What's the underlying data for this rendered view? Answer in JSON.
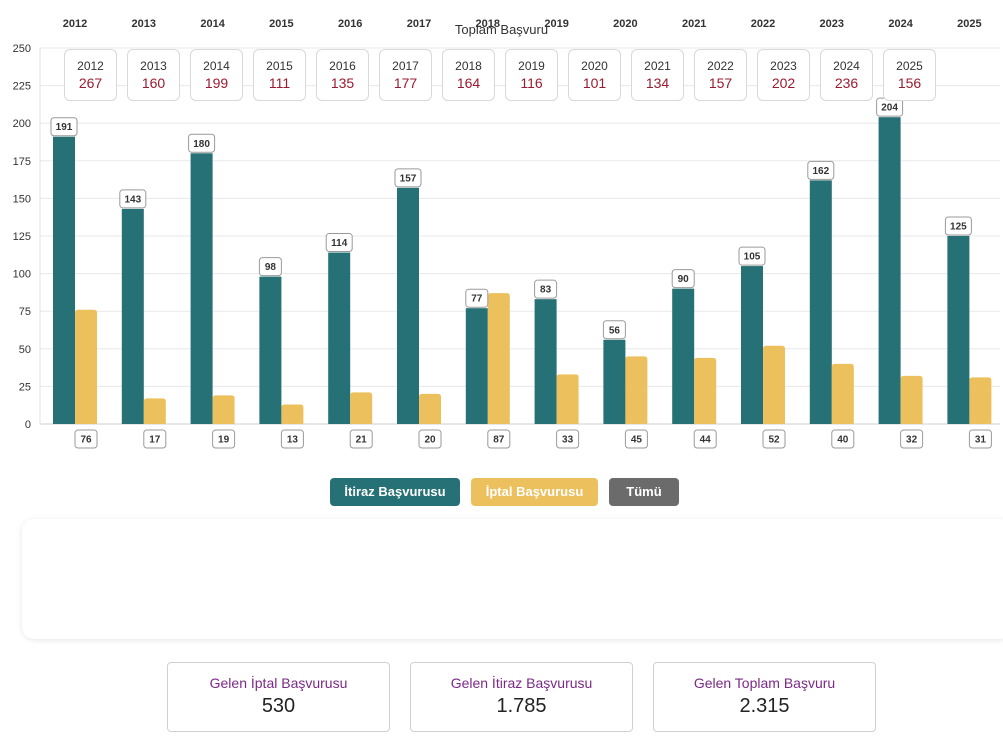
{
  "colors": {
    "itiraz": "#267175",
    "iptal": "#edc05e",
    "tumu": "#6b6b6b",
    "grid": "#e8e8e8",
    "accent_value": "#9b1b30",
    "card_title": "#7b2a87"
  },
  "chart_data": {
    "type": "bar",
    "categories": [
      "2012",
      "2013",
      "2014",
      "2015",
      "2016",
      "2017",
      "2018",
      "2019",
      "2020",
      "2021",
      "2022",
      "2023",
      "2024",
      "2025"
    ],
    "series": [
      {
        "name": "İtiraz Başvurusu",
        "values": [
          191,
          143,
          180,
          98,
          114,
          157,
          77,
          83,
          56,
          90,
          105,
          162,
          204,
          125
        ]
      },
      {
        "name": "İptal Başvurusu",
        "values": [
          76,
          17,
          19,
          13,
          21,
          20,
          87,
          33,
          45,
          44,
          52,
          40,
          32,
          31
        ]
      }
    ],
    "ylim": [
      0,
      250
    ],
    "yticks": [
      0,
      25,
      50,
      75,
      100,
      125,
      150,
      175,
      200,
      225,
      250
    ],
    "x_axis_position": "top",
    "grid": true,
    "data_labels": true
  },
  "legend": {
    "itiraz_label": "İtiraz Başvurusu",
    "iptal_label": "İptal Başvurusu",
    "tumu_label": "Tümü"
  },
  "totals": {
    "title": "Toplam Başvuru",
    "items": [
      {
        "year": "2012",
        "value": "267"
      },
      {
        "year": "2013",
        "value": "160"
      },
      {
        "year": "2014",
        "value": "199"
      },
      {
        "year": "2015",
        "value": "111"
      },
      {
        "year": "2016",
        "value": "135"
      },
      {
        "year": "2017",
        "value": "177"
      },
      {
        "year": "2018",
        "value": "164"
      },
      {
        "year": "2019",
        "value": "116"
      },
      {
        "year": "2020",
        "value": "101"
      },
      {
        "year": "2021",
        "value": "134"
      },
      {
        "year": "2022",
        "value": "157"
      },
      {
        "year": "2023",
        "value": "202"
      },
      {
        "year": "2024",
        "value": "236"
      },
      {
        "year": "2025",
        "value": "156"
      }
    ]
  },
  "summary": {
    "iptal_title": "Gelen İptal Başvurusu",
    "iptal_value": "530",
    "itiraz_title": "Gelen İtiraz Başvurusu",
    "itiraz_value": "1.785",
    "toplam_title": "Gelen Toplam Başvuru",
    "toplam_value": "2.315"
  }
}
